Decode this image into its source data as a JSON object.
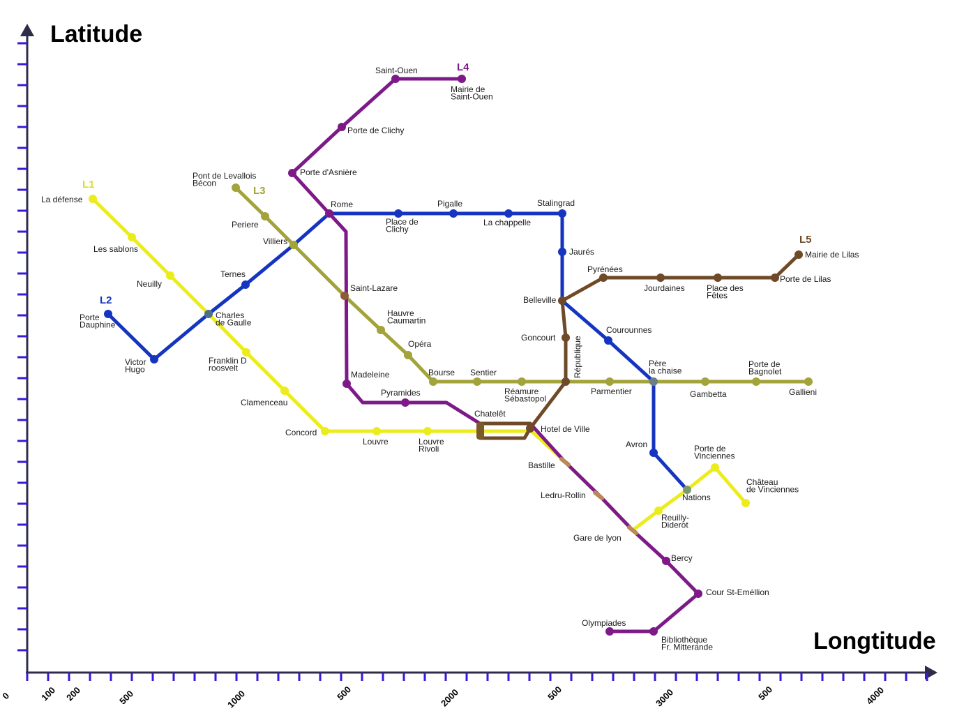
{
  "axes": {
    "y_title": "Latitude",
    "x_title": "Longtitude",
    "x_tick_labels": [
      "0",
      "100",
      "200",
      "500",
      "1000",
      "500",
      "2000",
      "500",
      "3000",
      "500",
      "4000"
    ],
    "axis_color": "#2d2d4a",
    "tick_color": "#3a17d9"
  },
  "lines": [
    {
      "id": "L1",
      "label": "L1",
      "color": "#ecec1d",
      "label_color": "#e0dc1a"
    },
    {
      "id": "L2",
      "label": "L2",
      "color": "#1535c0",
      "label_color": "#1535c0"
    },
    {
      "id": "L3",
      "label": "L3",
      "color": "#a2a33a",
      "label_color": "#a2a33a"
    },
    {
      "id": "L4",
      "label": "L4",
      "color": "#7d1a88",
      "label_color": "#7d1a88"
    },
    {
      "id": "L5",
      "label": "L5",
      "color": "#6e4a28",
      "label_color": "#6e4a28"
    }
  ],
  "stations": [
    {
      "line": "L1",
      "lines": [
        "La défense"
      ]
    },
    {
      "line": "L1",
      "lines": [
        "Les sablons"
      ]
    },
    {
      "line": "L1",
      "lines": [
        "Neuilly"
      ]
    },
    {
      "line": "L1",
      "lines": [
        "Charles",
        "de Gaulle"
      ]
    },
    {
      "line": "L1",
      "lines": [
        "Franklin D",
        "roosvelt"
      ]
    },
    {
      "line": "L1",
      "lines": [
        "Clamenceau"
      ]
    },
    {
      "line": "L1",
      "lines": [
        "Concord"
      ]
    },
    {
      "line": "L1",
      "lines": [
        "Louvre"
      ]
    },
    {
      "line": "L1",
      "lines": [
        "Louvre",
        "Rivoli"
      ]
    },
    {
      "line": "L1",
      "lines": [
        "Chatelêt"
      ]
    },
    {
      "line": "L1",
      "lines": [
        "Hotel de Ville"
      ]
    },
    {
      "line": "L1",
      "lines": [
        "Bastille"
      ]
    },
    {
      "line": "L1",
      "lines": [
        "Gare de lyon"
      ]
    },
    {
      "line": "L1",
      "lines": [
        "Reuilly-",
        "Diderot"
      ]
    },
    {
      "line": "L1",
      "lines": [
        "Nations"
      ]
    },
    {
      "line": "L1",
      "lines": [
        "Porte de",
        "Vinciennes"
      ]
    },
    {
      "line": "L1",
      "lines": [
        "Château",
        "de Vinciennes"
      ]
    },
    {
      "line": "L2",
      "lines": [
        "Porte",
        "Dauphine"
      ]
    },
    {
      "line": "L2",
      "lines": [
        "Victor",
        "Hugo"
      ]
    },
    {
      "line": "L2",
      "lines": [
        "Ternes"
      ]
    },
    {
      "line": "L2",
      "lines": [
        "Villiers"
      ]
    },
    {
      "line": "L2",
      "lines": [
        "Rome"
      ]
    },
    {
      "line": "L2",
      "lines": [
        "Place de",
        "Clichy"
      ]
    },
    {
      "line": "L2",
      "lines": [
        "Pigalle"
      ]
    },
    {
      "line": "L2",
      "lines": [
        "La chappelle"
      ]
    },
    {
      "line": "L2",
      "lines": [
        "Stalingrad"
      ]
    },
    {
      "line": "L2",
      "lines": [
        "Jaurés"
      ]
    },
    {
      "line": "L2",
      "lines": [
        "Belleville"
      ]
    },
    {
      "line": "L2",
      "lines": [
        "Courounnes"
      ]
    },
    {
      "line": "L2",
      "lines": [
        "Père",
        "la chaise"
      ]
    },
    {
      "line": "L2",
      "lines": [
        "Avron"
      ]
    },
    {
      "line": "L3",
      "lines": [
        "Pont de Levallois",
        "Bécon"
      ]
    },
    {
      "line": "L3",
      "lines": [
        "Periere"
      ]
    },
    {
      "line": "L3",
      "lines": [
        "Saint-Lazare"
      ]
    },
    {
      "line": "L3",
      "lines": [
        "Hauvre",
        "Caumartin"
      ]
    },
    {
      "line": "L3",
      "lines": [
        "Opéra"
      ]
    },
    {
      "line": "L3",
      "lines": [
        "Bourse"
      ]
    },
    {
      "line": "L3",
      "lines": [
        "Sentier"
      ]
    },
    {
      "line": "L3",
      "lines": [
        "Réamure",
        "Sébastopol"
      ]
    },
    {
      "line": "L3",
      "lines": [
        "Parmentier"
      ]
    },
    {
      "line": "L3",
      "lines": [
        "Gambetta"
      ]
    },
    {
      "line": "L3",
      "lines": [
        "Porte de",
        "Bagnolet"
      ]
    },
    {
      "line": "L3",
      "lines": [
        "Gallieni"
      ]
    },
    {
      "line": "L4",
      "lines": [
        "Saint-Ouen"
      ]
    },
    {
      "line": "L4",
      "lines": [
        "Mairie de",
        "Saint-Ouen"
      ]
    },
    {
      "line": "L4",
      "lines": [
        "Porte de Clichy"
      ]
    },
    {
      "line": "L4",
      "lines": [
        "Porte d'Asnière"
      ]
    },
    {
      "line": "L4",
      "lines": [
        "Madeleine"
      ]
    },
    {
      "line": "L4",
      "lines": [
        "Pyramides"
      ]
    },
    {
      "line": "L4",
      "lines": [
        "Ledru-Rollin"
      ]
    },
    {
      "line": "L4",
      "lines": [
        "Bercy"
      ]
    },
    {
      "line": "L4",
      "lines": [
        "Cour St-Eméllion"
      ]
    },
    {
      "line": "L4",
      "lines": [
        "Olympiades"
      ]
    },
    {
      "line": "L4",
      "lines": [
        "Bibliothèque",
        "Fr. Mitterande"
      ]
    },
    {
      "line": "L5",
      "lines": [
        "Mairie de Lilas"
      ]
    },
    {
      "line": "L5",
      "lines": [
        "Porte de Lilas"
      ]
    },
    {
      "line": "L5",
      "lines": [
        "Place des",
        "Fêtes"
      ]
    },
    {
      "line": "L5",
      "lines": [
        "Jourdaines"
      ]
    },
    {
      "line": "L5",
      "lines": [
        "Pyrénées"
      ]
    },
    {
      "line": "L5",
      "lines": [
        "Goncourt"
      ]
    },
    {
      "line": "L5",
      "lines": [
        "République"
      ]
    }
  ]
}
